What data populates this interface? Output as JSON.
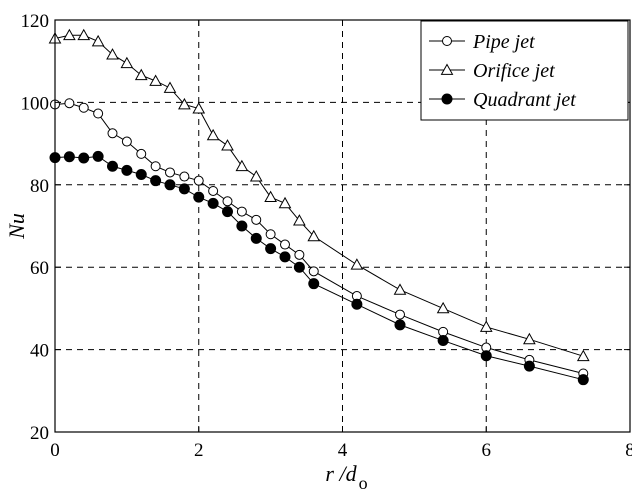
{
  "chart_data": {
    "type": "line",
    "xlabel": "r /d",
    "xlabel_subscript": "o",
    "ylabel": "Nu",
    "xlim": [
      0,
      8
    ],
    "ylim": [
      20,
      120
    ],
    "xticks": [
      "0",
      "2",
      "4",
      "6",
      "8"
    ],
    "yticks": [
      "20",
      "40",
      "60",
      "80",
      "100",
      "120"
    ],
    "grid": true,
    "grid_style": "dashed",
    "legend_position": "top-right",
    "series": [
      {
        "name": "Pipe jet",
        "marker": "open-circle",
        "x": [
          0,
          0.2,
          0.4,
          0.6,
          0.8,
          1.0,
          1.2,
          1.4,
          1.6,
          1.8,
          2.0,
          2.2,
          2.4,
          2.6,
          2.8,
          3.0,
          3.2,
          3.4,
          3.6,
          4.2,
          4.8,
          5.4,
          6.0,
          6.6,
          7.35
        ],
        "y": [
          99.5,
          99.8,
          98.7,
          97.3,
          92.5,
          90.5,
          87.5,
          84.5,
          83,
          82,
          81,
          78.5,
          76,
          73.5,
          71.5,
          68,
          65.5,
          63,
          59,
          53,
          48.5,
          44.3,
          40.5,
          37.5,
          34.2
        ]
      },
      {
        "name": "Orifice jet",
        "marker": "open-triangle",
        "x": [
          0,
          0.2,
          0.4,
          0.6,
          0.8,
          1.0,
          1.2,
          1.4,
          1.6,
          1.8,
          2.0,
          2.2,
          2.4,
          2.6,
          2.8,
          3.0,
          3.2,
          3.4,
          3.6,
          4.2,
          4.8,
          5.4,
          6.0,
          6.6,
          7.35
        ],
        "y": [
          115.5,
          116.3,
          116.3,
          114.8,
          111.6,
          109.5,
          106.6,
          105.2,
          103.5,
          99.5,
          98.5,
          92,
          89.5,
          84.5,
          82,
          77,
          75.5,
          71.3,
          67.5,
          60.6,
          54.5,
          50,
          45.5,
          42.5,
          38.4
        ]
      },
      {
        "name": "Quadrant jet",
        "marker": "filled-circle",
        "x": [
          0,
          0.2,
          0.4,
          0.6,
          0.8,
          1.0,
          1.2,
          1.4,
          1.6,
          1.8,
          2.0,
          2.2,
          2.4,
          2.6,
          2.8,
          3.0,
          3.2,
          3.4,
          3.6,
          4.2,
          4.8,
          5.4,
          6.0,
          6.6,
          7.35
        ],
        "y": [
          86.6,
          86.8,
          86.5,
          86.9,
          84.5,
          83.5,
          82.5,
          81,
          80,
          79,
          77,
          75.5,
          73.5,
          70,
          67,
          64.5,
          62.5,
          60,
          56,
          51,
          46,
          42.2,
          38.5,
          36,
          32.7
        ]
      }
    ]
  }
}
